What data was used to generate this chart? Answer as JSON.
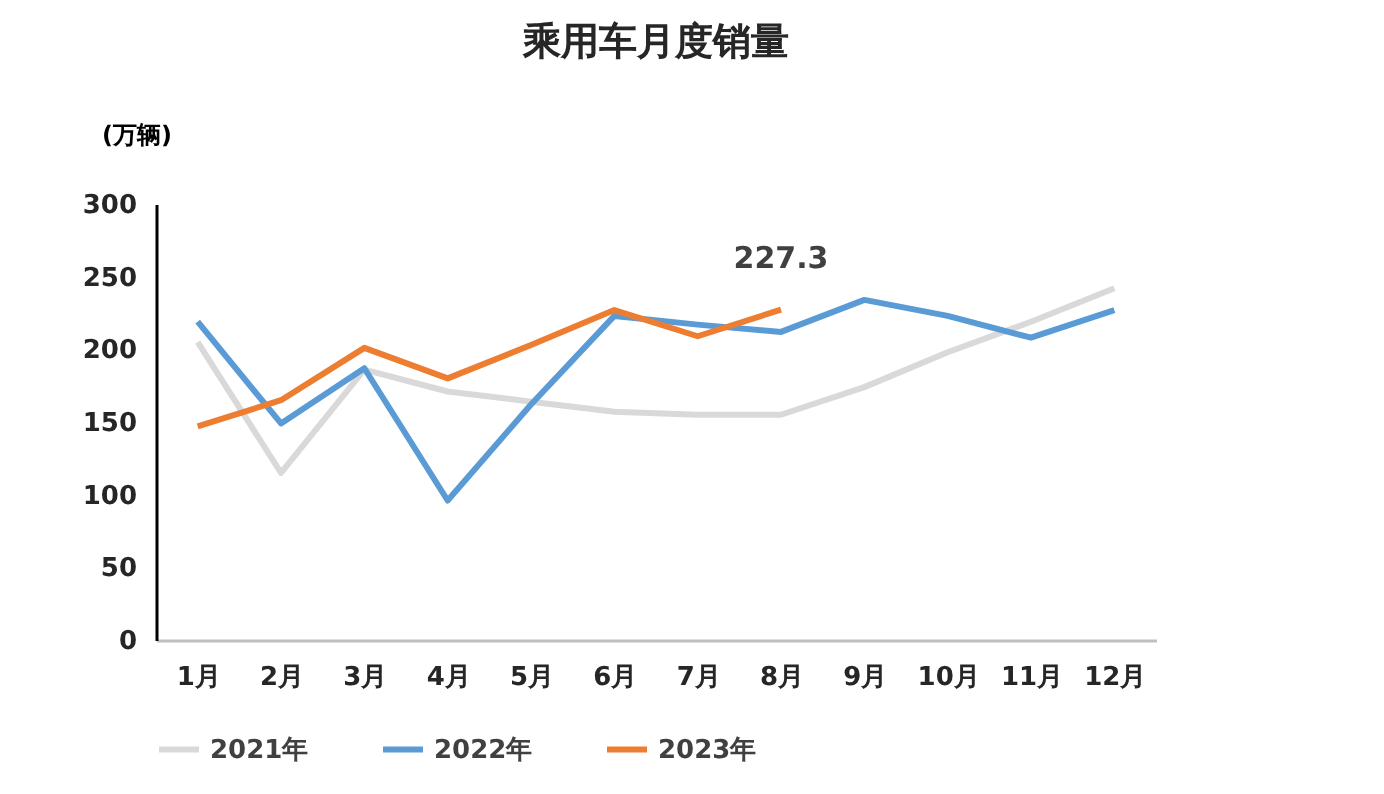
{
  "chart_data": {
    "type": "line",
    "title": "乘用车月度销量",
    "ylabel": "(万辆)",
    "categories": [
      "1月",
      "2月",
      "3月",
      "4月",
      "5月",
      "6月",
      "7月",
      "8月",
      "9月",
      "10月",
      "11月",
      "12月"
    ],
    "series": [
      {
        "name": "2021年",
        "color": "#d9d9d9",
        "values": [
          205,
          115,
          186,
          171,
          164,
          157,
          155,
          155,
          174,
          198,
          219,
          242
        ]
      },
      {
        "name": "2022年",
        "color": "#5b9bd5",
        "values": [
          219,
          149,
          187,
          96,
          162,
          223,
          217,
          212,
          234,
          223,
          208,
          227
        ]
      },
      {
        "name": "2023年",
        "color": "#ed7d31",
        "values": [
          147,
          165,
          201,
          180,
          203,
          227,
          209,
          227.3,
          null,
          null,
          null,
          null
        ]
      }
    ],
    "ylim": [
      0,
      300
    ],
    "yticks": [
      0,
      50,
      100,
      150,
      200,
      250,
      300
    ],
    "grid": false,
    "legend": "bottom",
    "marker": "none",
    "line_style": "solid",
    "annotations": [
      {
        "text": "227.3",
        "x": "8月",
        "y": 227.3
      }
    ]
  }
}
